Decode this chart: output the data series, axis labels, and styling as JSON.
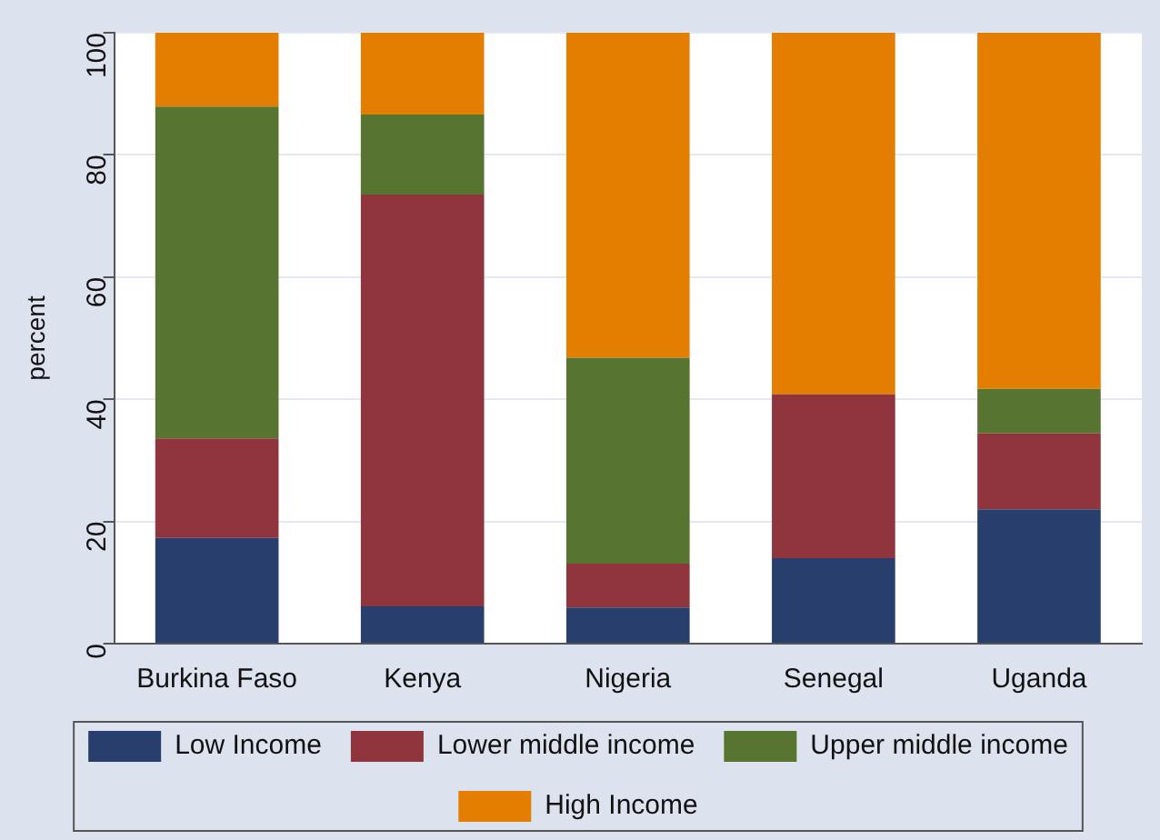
{
  "chart_data": {
    "type": "bar",
    "stacked": true,
    "ylabel": "percent",
    "categories": [
      "Burkina Faso",
      "Kenya",
      "Nigeria",
      "Senegal",
      "Uganda"
    ],
    "series": [
      {
        "name": "Low Income",
        "color": "#283f6e",
        "values": [
          17.3,
          6.1,
          5.9,
          14.0,
          22.0
        ]
      },
      {
        "name": "Lower middle income",
        "color": "#90353e",
        "values": [
          16.3,
          67.4,
          7.2,
          26.8,
          12.4
        ]
      },
      {
        "name": "Upper middle income",
        "color": "#587431",
        "values": [
          54.3,
          13.1,
          33.7,
          0,
          7.3
        ]
      },
      {
        "name": "High Income",
        "color": "#e37e00",
        "values": [
          12.1,
          13.4,
          53.2,
          59.2,
          58.3
        ]
      }
    ],
    "ylim": [
      0,
      100
    ],
    "yticks": [
      0,
      20,
      40,
      60,
      80,
      100
    ],
    "grid": "y",
    "legend": "bottom"
  }
}
